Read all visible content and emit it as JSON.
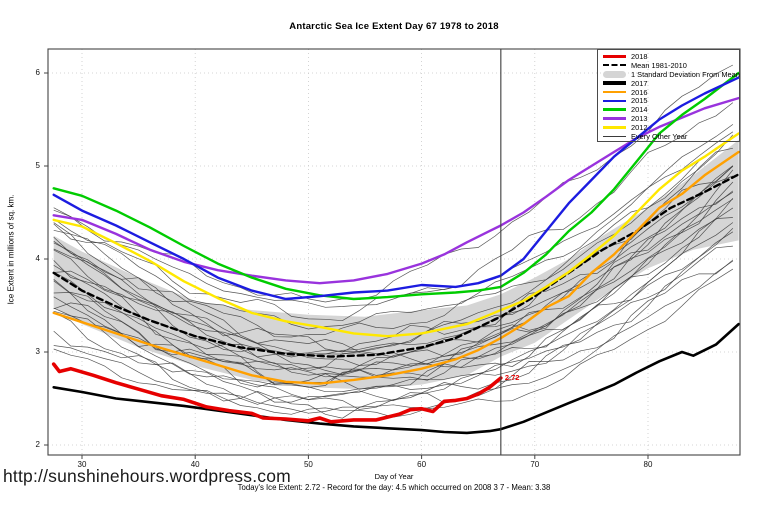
{
  "footer": {
    "xlabel": "Day of Year",
    "status_line": "Today's Ice Extent: 2.72  - Record for the day: 4.5 which occurred on 2008 3 7  - Mean: 3.38",
    "url": "http://sunshinehours.wordpress.com"
  },
  "chart_data": {
    "type": "line",
    "title": "Antarctic Sea Ice Extent Day 67 1978 to 2018",
    "xlabel": "Day of Year",
    "ylabel": "Ice Extent in millions of sq. km.",
    "xlim": [
      27,
      88.1
    ],
    "ylim": [
      1.9,
      6.26
    ],
    "xticks": [
      30,
      40,
      50,
      60,
      70,
      80
    ],
    "yticks": [
      2,
      3,
      4,
      5,
      6
    ],
    "grid": "dotted",
    "legend_position": "top-right",
    "vline_day": 67,
    "annotation": {
      "label": "2.72",
      "day": 67,
      "value": 2.72,
      "color": "#E60000"
    },
    "colors": {
      "y2018": "#E60000",
      "mean": "#000000",
      "band": "#D5D5D5",
      "y2017": "#000000",
      "y2016": "#FFA000",
      "y2015": "#1C1CE0",
      "y2014": "#00CC00",
      "y2013": "#9933DD",
      "y2012": "#FFE800",
      "other": "#3A3A3A",
      "grid": "#C9C9C9",
      "frame": "#444444",
      "vline": "#3C3C3C"
    },
    "band": {
      "name": "1 Standard Deviation From Mean",
      "days": [
        27.5,
        30,
        35,
        40,
        45,
        50,
        55,
        60,
        64,
        67,
        70,
        73,
        76,
        80,
        84,
        88
      ],
      "top": [
        4.25,
        4.08,
        3.8,
        3.55,
        3.45,
        3.4,
        3.38,
        3.45,
        3.5,
        3.62,
        3.8,
        4.0,
        4.25,
        4.55,
        4.9,
        5.28
      ],
      "bottom": [
        3.48,
        3.3,
        3.05,
        2.85,
        2.7,
        2.62,
        2.6,
        2.65,
        2.75,
        2.95,
        3.1,
        3.35,
        3.6,
        3.9,
        4.1,
        4.2
      ]
    },
    "series": [
      {
        "name": "Mean 1981-2010",
        "key": "mean",
        "style": "dashed",
        "days": [
          27.5,
          30,
          33,
          36,
          40,
          44,
          48,
          52,
          56,
          60,
          63,
          67,
          70,
          73,
          76,
          79,
          82,
          85,
          88
        ],
        "values": [
          3.85,
          3.66,
          3.49,
          3.34,
          3.17,
          3.05,
          2.98,
          2.95,
          2.97,
          3.05,
          3.15,
          3.38,
          3.6,
          3.85,
          4.1,
          4.3,
          4.55,
          4.72,
          4.91
        ]
      },
      {
        "name": "2012",
        "key": "y2012",
        "style": "solid",
        "days": [
          27.5,
          30,
          33,
          36,
          39,
          42,
          45,
          48,
          51,
          54,
          57,
          60,
          62,
          64,
          66,
          67,
          69,
          71,
          73,
          75,
          77,
          79,
          81,
          83,
          85,
          88
        ],
        "values": [
          4.42,
          4.35,
          4.17,
          3.98,
          3.76,
          3.58,
          3.42,
          3.33,
          3.27,
          3.2,
          3.17,
          3.2,
          3.25,
          3.3,
          3.4,
          3.45,
          3.55,
          3.7,
          3.86,
          4.05,
          4.25,
          4.5,
          4.75,
          4.95,
          5.1,
          5.35
        ]
      },
      {
        "name": "2013",
        "key": "y2013",
        "style": "solid",
        "days": [
          27.5,
          30,
          33,
          36,
          39,
          42,
          45,
          48,
          51,
          54,
          57,
          60,
          62,
          64,
          66,
          67,
          69,
          71,
          73,
          75,
          77,
          79,
          81,
          83,
          85,
          88
        ],
        "values": [
          4.47,
          4.42,
          4.27,
          4.1,
          3.97,
          3.88,
          3.82,
          3.77,
          3.74,
          3.77,
          3.84,
          3.95,
          4.05,
          4.18,
          4.3,
          4.36,
          4.5,
          4.67,
          4.85,
          5.0,
          5.15,
          5.3,
          5.42,
          5.52,
          5.62,
          5.73
        ]
      },
      {
        "name": "2014",
        "key": "y2014",
        "style": "solid",
        "days": [
          27.5,
          30,
          33,
          36,
          39,
          42,
          45,
          48,
          51,
          54,
          57,
          60,
          63,
          65,
          67,
          69,
          71,
          73,
          75,
          77,
          79,
          81,
          83,
          85,
          88
        ],
        "values": [
          4.76,
          4.68,
          4.52,
          4.34,
          4.14,
          3.95,
          3.8,
          3.68,
          3.61,
          3.57,
          3.59,
          3.62,
          3.64,
          3.66,
          3.7,
          3.85,
          4.05,
          4.3,
          4.5,
          4.75,
          5.05,
          5.35,
          5.55,
          5.72,
          6.0
        ]
      },
      {
        "name": "2015",
        "key": "y2015",
        "style": "solid",
        "days": [
          27.5,
          30,
          33,
          36,
          39,
          42,
          45,
          48,
          51,
          54,
          57,
          60,
          63,
          65,
          67,
          69,
          71,
          73,
          75,
          77,
          79,
          81,
          83,
          85,
          88
        ],
        "values": [
          4.69,
          4.52,
          4.36,
          4.18,
          4.0,
          3.8,
          3.66,
          3.57,
          3.6,
          3.64,
          3.66,
          3.72,
          3.7,
          3.74,
          3.82,
          4.0,
          4.3,
          4.6,
          4.85,
          5.1,
          5.3,
          5.5,
          5.65,
          5.78,
          5.95
        ]
      },
      {
        "name": "2016",
        "key": "y2016",
        "style": "solid",
        "days": [
          27.5,
          30,
          33,
          36,
          39,
          42,
          45,
          48,
          51,
          54,
          57,
          60,
          63,
          65,
          67,
          69,
          71,
          73,
          75,
          77,
          79,
          81,
          83,
          85,
          88
        ],
        "values": [
          3.42,
          3.32,
          3.2,
          3.08,
          2.97,
          2.86,
          2.75,
          2.68,
          2.66,
          2.7,
          2.75,
          2.82,
          2.92,
          3.02,
          3.15,
          3.3,
          3.48,
          3.6,
          3.85,
          4.05,
          4.3,
          4.55,
          4.7,
          4.9,
          5.15
        ]
      },
      {
        "name": "2017",
        "key": "y2017",
        "style": "solid",
        "width": 2.6,
        "days": [
          27.5,
          30,
          33,
          36,
          39,
          42,
          45,
          48,
          51,
          54,
          57,
          60,
          62,
          64,
          66,
          67,
          69,
          71,
          73,
          75,
          77,
          79,
          81,
          83,
          84,
          86,
          88
        ],
        "values": [
          2.62,
          2.57,
          2.5,
          2.46,
          2.42,
          2.37,
          2.32,
          2.27,
          2.23,
          2.2,
          2.18,
          2.16,
          2.14,
          2.13,
          2.15,
          2.17,
          2.25,
          2.35,
          2.45,
          2.55,
          2.65,
          2.78,
          2.9,
          3.0,
          2.96,
          3.08,
          3.3
        ]
      },
      {
        "name": "2018",
        "key": "y2018",
        "style": "solid",
        "width": 3.6,
        "days": [
          27.5,
          28,
          29,
          31,
          33,
          35,
          37,
          39,
          41,
          43,
          45,
          46,
          48,
          50,
          51,
          52,
          54,
          56,
          58,
          59,
          60,
          61,
          62,
          63,
          64,
          65,
          66,
          67
        ],
        "values": [
          2.87,
          2.79,
          2.82,
          2.75,
          2.67,
          2.6,
          2.53,
          2.49,
          2.41,
          2.37,
          2.34,
          2.29,
          2.28,
          2.26,
          2.29,
          2.25,
          2.27,
          2.27,
          2.33,
          2.38,
          2.39,
          2.36,
          2.47,
          2.48,
          2.5,
          2.55,
          2.62,
          2.72
        ]
      }
    ],
    "other_years": {
      "name": "Every Other Year",
      "control_days": [
        27.5,
        40,
        52,
        70,
        88
      ],
      "lines": [
        [
          4.55,
          3.8,
          3.5,
          4.0,
          5.5
        ],
        [
          4.45,
          3.6,
          3.3,
          3.9,
          5.45
        ],
        [
          4.35,
          3.5,
          3.2,
          3.8,
          5.3
        ],
        [
          4.3,
          3.45,
          3.05,
          3.6,
          5.25
        ],
        [
          4.25,
          3.4,
          3.1,
          3.55,
          5.1
        ],
        [
          4.2,
          3.3,
          3.0,
          3.5,
          5.05
        ],
        [
          4.1,
          3.35,
          2.95,
          3.45,
          5.0
        ],
        [
          4.05,
          3.25,
          2.9,
          3.4,
          4.95
        ],
        [
          4.0,
          3.2,
          2.85,
          3.35,
          4.85
        ],
        [
          3.95,
          3.1,
          2.9,
          3.3,
          4.8
        ],
        [
          3.9,
          3.15,
          2.8,
          3.25,
          4.75
        ],
        [
          3.85,
          3.05,
          2.75,
          3.2,
          4.7
        ],
        [
          3.8,
          3.0,
          2.8,
          3.15,
          4.65
        ],
        [
          3.7,
          2.95,
          2.7,
          3.1,
          4.6
        ],
        [
          3.65,
          2.9,
          2.65,
          3.05,
          4.5
        ],
        [
          3.6,
          2.85,
          2.6,
          3.0,
          4.45
        ],
        [
          3.5,
          2.8,
          2.55,
          2.95,
          4.35
        ],
        [
          3.45,
          2.75,
          2.5,
          2.9,
          4.3
        ],
        [
          3.35,
          2.7,
          2.45,
          2.85,
          4.2
        ],
        [
          3.25,
          2.65,
          2.4,
          2.8,
          4.1
        ],
        [
          3.1,
          2.6,
          2.38,
          2.7,
          4.0
        ],
        [
          3.0,
          2.55,
          2.35,
          2.6,
          3.9
        ],
        [
          4.5,
          3.9,
          3.55,
          4.55,
          6.15
        ],
        [
          4.4,
          3.7,
          3.4,
          4.2,
          5.8
        ],
        [
          3.55,
          3.0,
          2.68,
          3.3,
          4.9
        ],
        [
          4.15,
          3.3,
          2.98,
          3.7,
          5.35
        ]
      ]
    },
    "legend": [
      {
        "label": "2018",
        "swatch": "line-thick",
        "color": "#E60000"
      },
      {
        "label": "Mean 1981-2010",
        "swatch": "dash",
        "color": "#000000"
      },
      {
        "label": "1 Standard Deviation From Mean",
        "swatch": "band",
        "color": "#D5D5D5"
      },
      {
        "label": "2017",
        "swatch": "line-thick",
        "color": "#000000"
      },
      {
        "label": "2016",
        "swatch": "line",
        "color": "#FFA000"
      },
      {
        "label": "2015",
        "swatch": "line",
        "color": "#1C1CE0"
      },
      {
        "label": "2014",
        "swatch": "line",
        "color": "#00CC00"
      },
      {
        "label": "2013",
        "swatch": "line",
        "color": "#9933DD"
      },
      {
        "label": "2012",
        "swatch": "line",
        "color": "#FFE800"
      },
      {
        "label": "Every Other Year",
        "swatch": "line-thin",
        "color": "#3A3A3A"
      }
    ]
  }
}
